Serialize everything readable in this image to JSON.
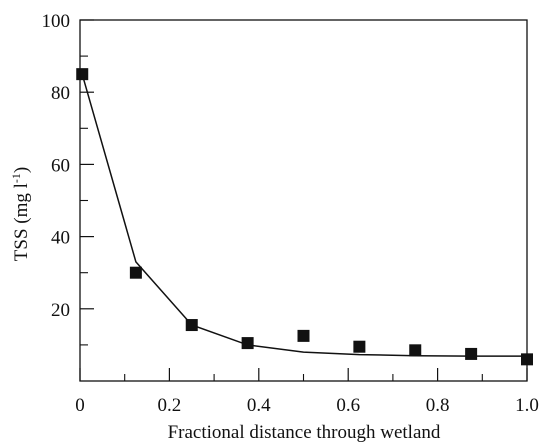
{
  "chart_data": {
    "type": "scatter",
    "xlabel": "Fractional distance through wetland",
    "ylabel_base": "TSS (mg l",
    "ylabel_sup": "-1",
    "ylabel_end": ")",
    "xlim": [
      0,
      1.0
    ],
    "ylim": [
      0,
      100
    ],
    "x_ticks": [
      0,
      0.2,
      0.4,
      0.6,
      0.8,
      1.0
    ],
    "x_tick_labels": [
      "0",
      "0.2",
      "0.4",
      "0.6",
      "0.8",
      "1.0"
    ],
    "x_minor_ticks": [
      0.1,
      0.3,
      0.5,
      0.7,
      0.9
    ],
    "y_ticks": [
      20,
      40,
      60,
      80,
      100
    ],
    "y_tick_labels": [
      "20",
      "40",
      "60",
      "80",
      "100"
    ],
    "y_minor_ticks": [
      10,
      30,
      50,
      70,
      90
    ],
    "grid": false,
    "series": [
      {
        "kind": "points",
        "marker": "square",
        "color": "#111111",
        "x": [
          0.005,
          0.125,
          0.25,
          0.375,
          0.5,
          0.625,
          0.75,
          0.875,
          1.0
        ],
        "y": [
          85,
          30,
          15.5,
          10.5,
          12.5,
          9.5,
          8.5,
          7.5,
          6
        ]
      },
      {
        "kind": "line",
        "color": "#111111",
        "x": [
          0.005,
          0.125,
          0.25,
          0.375,
          0.5,
          0.625,
          0.75,
          0.875,
          1.0
        ],
        "y": [
          85,
          33,
          15.5,
          10,
          8,
          7.3,
          7,
          6.9,
          6.9
        ]
      }
    ]
  }
}
